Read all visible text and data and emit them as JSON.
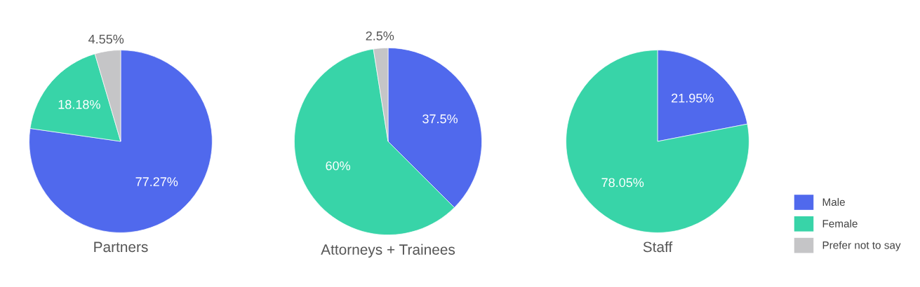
{
  "chart_data": [
    {
      "type": "pie",
      "title": "Partners",
      "categories": [
        "Male",
        "Female",
        "Prefer not to say"
      ],
      "values": [
        77.27,
        18.18,
        4.55
      ],
      "value_labels": [
        "77.27%",
        "18.18%",
        "4.55%"
      ],
      "colors": [
        "#5069ed",
        "#38d4a8",
        "#c5c5c7"
      ],
      "legend": "right"
    },
    {
      "type": "pie",
      "title": "Attorneys + Trainees",
      "categories": [
        null,
        null,
        null
      ],
      "values": [
        37.5,
        60,
        2.5
      ],
      "value_labels": [
        "37.5%",
        "60%",
        "2.5%"
      ],
      "colors": [
        "#5069ed",
        "#38d4a8",
        "#c5c5c7"
      ]
    },
    {
      "type": "pie",
      "title": "Staff",
      "categories": [
        null,
        null,
        null
      ],
      "values": [
        21.95,
        78.05,
        null
      ],
      "value_labels": [
        "21.95%",
        "78.05%",
        null
      ],
      "colors": [
        "#5069ed",
        "#38d4a8",
        "#c5c5c7"
      ]
    }
  ]
}
